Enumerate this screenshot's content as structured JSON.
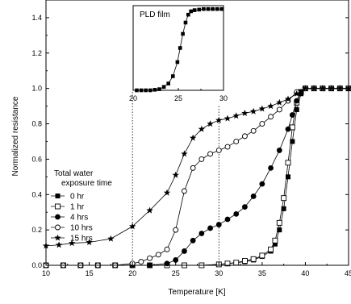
{
  "chart_data": [
    {
      "type": "line",
      "xlabel": "Temperature [K]",
      "ylabel": "Normalized resistance",
      "xlim": [
        10,
        45
      ],
      "ylim": [
        0,
        1.5
      ],
      "xticks": [
        "10",
        "15",
        "20",
        "25",
        "30",
        "35",
        "40",
        "45"
      ],
      "yticks": [
        "0.0",
        "0.2",
        "0.4",
        "0.6",
        "0.8",
        "1.0",
        "1.2",
        "1.4"
      ],
      "legend_title": [
        "Total water",
        "exposure time"
      ],
      "legend_position": "left",
      "reference_lines_x": [
        20,
        30
      ],
      "series": [
        {
          "name": "0 hr",
          "marker": "filled-square",
          "x": [
            10,
            12,
            14,
            16,
            18,
            20,
            22,
            24,
            26,
            28,
            30,
            31,
            32,
            33,
            34,
            35,
            36,
            36.5,
            37,
            37.5,
            38,
            38.5,
            39,
            39.5,
            40,
            41,
            42,
            43,
            44,
            45
          ],
          "y": [
            0,
            0,
            0,
            0,
            0,
            0,
            0,
            0,
            0,
            0,
            0.005,
            0.01,
            0.015,
            0.02,
            0.03,
            0.05,
            0.08,
            0.12,
            0.2,
            0.32,
            0.5,
            0.7,
            0.88,
            0.97,
            1.0,
            1.0,
            1.0,
            1.0,
            1.0,
            1.0
          ]
        },
        {
          "name": "1 hr",
          "marker": "open-square",
          "x": [
            10,
            12,
            14,
            16,
            18,
            20,
            22,
            24,
            26,
            28,
            30,
            31,
            32,
            33,
            34,
            35,
            36,
            36.5,
            37,
            37.5,
            38,
            38.5,
            39,
            39.5,
            40,
            41,
            42,
            43,
            44,
            45
          ],
          "y": [
            0,
            0,
            0,
            0,
            0,
            0,
            0,
            0,
            0,
            0,
            0.005,
            0.01,
            0.015,
            0.025,
            0.035,
            0.055,
            0.09,
            0.14,
            0.24,
            0.38,
            0.58,
            0.78,
            0.92,
            0.98,
            1.0,
            1.0,
            1.0,
            1.0,
            1.0,
            1.0
          ]
        },
        {
          "name": "4 hrs",
          "marker": "filled-circle",
          "x": [
            10,
            12,
            14,
            16,
            18,
            20,
            22,
            24,
            25,
            26,
            27,
            28,
            29,
            30,
            31,
            32,
            33,
            34,
            35,
            36,
            37,
            38,
            38.5,
            39,
            39.5,
            40,
            41,
            42,
            43,
            44,
            45
          ],
          "y": [
            0,
            0,
            0,
            0,
            0,
            0,
            0,
            0.01,
            0.03,
            0.08,
            0.14,
            0.18,
            0.21,
            0.23,
            0.26,
            0.29,
            0.33,
            0.39,
            0.46,
            0.55,
            0.65,
            0.77,
            0.85,
            0.93,
            0.98,
            1.0,
            1.0,
            1.0,
            1.0,
            1.0,
            1.0
          ]
        },
        {
          "name": "10 hrs",
          "marker": "open-circle",
          "x": [
            10,
            12,
            14,
            16,
            18,
            20,
            21,
            22,
            23,
            24,
            25,
            26,
            27,
            28,
            29,
            30,
            31,
            32,
            33,
            34,
            35,
            36,
            37,
            38,
            39,
            40,
            41,
            42,
            43,
            44,
            45
          ],
          "y": [
            0,
            0,
            0,
            0,
            0,
            0.01,
            0.02,
            0.04,
            0.06,
            0.09,
            0.2,
            0.42,
            0.55,
            0.6,
            0.63,
            0.65,
            0.67,
            0.7,
            0.73,
            0.76,
            0.8,
            0.84,
            0.88,
            0.93,
            0.98,
            1.0,
            1.0,
            1.0,
            1.0,
            1.0,
            1.0
          ]
        },
        {
          "name": "15 hrs",
          "marker": "star",
          "x": [
            10,
            11.5,
            13,
            15,
            17.5,
            20,
            22,
            24,
            25,
            26,
            27,
            28,
            29,
            30,
            31,
            32,
            33,
            34,
            35,
            36,
            37,
            38,
            39,
            40,
            41,
            42,
            43,
            44,
            45
          ],
          "y": [
            0.11,
            0.115,
            0.125,
            0.13,
            0.15,
            0.22,
            0.31,
            0.41,
            0.51,
            0.63,
            0.72,
            0.77,
            0.8,
            0.82,
            0.83,
            0.845,
            0.86,
            0.87,
            0.885,
            0.9,
            0.92,
            0.94,
            0.97,
            1.0,
            1.0,
            1.0,
            1.0,
            1.0,
            1.0
          ]
        }
      ]
    },
    {
      "type": "line",
      "title": "PLD film",
      "xlim": [
        20,
        30
      ],
      "ylim": [
        0,
        1.5
      ],
      "xticks": [
        "20",
        "25",
        "30"
      ],
      "series": [
        {
          "marker": "filled-square",
          "x": [
            20.4,
            20.9,
            21.4,
            21.9,
            22.4,
            22.9,
            23.4,
            23.9,
            24.4,
            24.9,
            25.2,
            25.5,
            25.8,
            26.1,
            26.4,
            26.8,
            27.3,
            27.8,
            28.3,
            28.8,
            29.3,
            29.8
          ],
          "y": [
            0,
            0,
            0,
            0,
            0.01,
            0.02,
            0.06,
            0.12,
            0.25,
            0.5,
            0.75,
            1.0,
            1.2,
            1.34,
            1.4,
            1.42,
            1.43,
            1.44,
            1.44,
            1.44,
            1.44,
            1.44
          ]
        }
      ]
    }
  ]
}
